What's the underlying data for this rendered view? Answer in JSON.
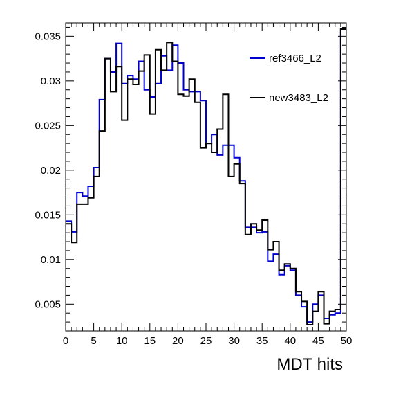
{
  "chart_data": {
    "type": "histogram-step",
    "xlabel": "MDT hits",
    "ylabel": "",
    "title": "",
    "xlim": [
      0,
      50
    ],
    "ylim": [
      0.002,
      0.0365
    ],
    "bin_width": 1,
    "x_ticks": [
      0,
      5,
      10,
      15,
      20,
      25,
      30,
      35,
      40,
      45,
      50
    ],
    "y_ticks": [
      0.005,
      0.01,
      0.015,
      0.02,
      0.025,
      0.03,
      0.035
    ],
    "y_tick_labels": [
      "0.005",
      "0.01",
      "0.015",
      "0.02",
      "0.025",
      "0.03",
      "0.035"
    ],
    "legend_position": "top-right",
    "grid": false,
    "series": [
      {
        "name": "ref3466_L2",
        "color": "#0000cc",
        "values": [
          0.0143,
          0.0131,
          0.0175,
          0.0171,
          0.0182,
          0.0203,
          0.0279,
          0.0325,
          0.031,
          0.0342,
          0.0297,
          0.0306,
          0.0302,
          0.0322,
          0.029,
          0.0282,
          0.0297,
          0.0328,
          0.0312,
          0.034,
          0.032,
          0.029,
          0.0288,
          0.0288,
          0.0278,
          0.023,
          0.024,
          0.0217,
          0.0228,
          0.0228,
          0.0214,
          0.0188,
          0.0136,
          0.0136,
          0.013,
          0.0131,
          0.0098,
          0.0106,
          0.0083,
          0.0093,
          0.0088,
          0.006,
          0.0047,
          0.003,
          0.005,
          0.006,
          0.0034,
          0.0038,
          0.004,
          0.0358
        ]
      },
      {
        "name": "new3483_L2",
        "color": "#000000",
        "values": [
          0.014,
          0.0119,
          0.0162,
          0.0162,
          0.0169,
          0.0193,
          0.0244,
          0.0325,
          0.0288,
          0.0316,
          0.0256,
          0.0302,
          0.0296,
          0.0311,
          0.0329,
          0.0263,
          0.0335,
          0.0312,
          0.0343,
          0.0322,
          0.0285,
          0.0283,
          0.0302,
          0.0276,
          0.0225,
          0.023,
          0.022,
          0.0246,
          0.0285,
          0.0193,
          0.0207,
          0.0185,
          0.0128,
          0.014,
          0.0133,
          0.0144,
          0.0111,
          0.012,
          0.0088,
          0.0095,
          0.009,
          0.0064,
          0.0053,
          0.0027,
          0.0042,
          0.0064,
          0.0028,
          0.0042,
          0.0044,
          0.0358
        ]
      }
    ]
  }
}
